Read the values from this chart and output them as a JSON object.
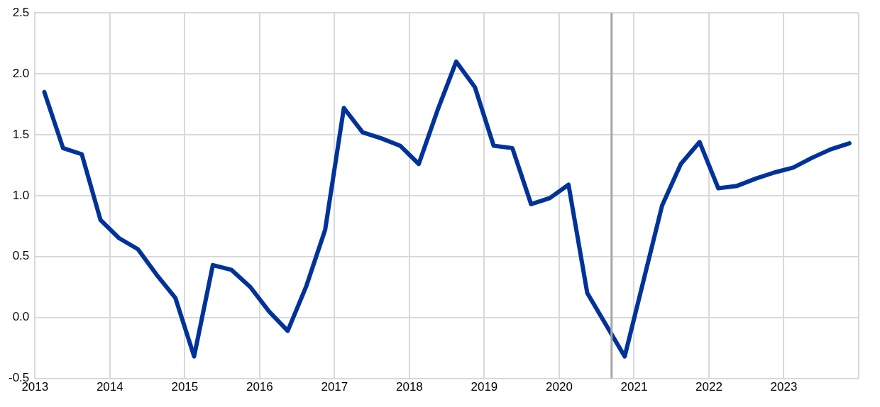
{
  "chart_data": {
    "type": "line",
    "x": [
      2013.125,
      2013.375,
      2013.625,
      2013.875,
      2014.125,
      2014.375,
      2014.625,
      2014.875,
      2015.125,
      2015.375,
      2015.625,
      2015.875,
      2016.125,
      2016.375,
      2016.625,
      2016.875,
      2017.125,
      2017.375,
      2017.625,
      2017.875,
      2018.125,
      2018.375,
      2018.625,
      2018.875,
      2019.125,
      2019.375,
      2019.625,
      2019.875,
      2020.125,
      2020.375,
      2020.625,
      2020.875,
      2021.125,
      2021.375,
      2021.625,
      2021.875,
      2022.125,
      2022.375,
      2022.625,
      2022.875,
      2023.125,
      2023.375,
      2023.625,
      2023.875
    ],
    "series": [
      {
        "color": "#003299",
        "values": [
          1.85,
          1.39,
          1.34,
          0.8,
          0.65,
          0.56,
          0.35,
          0.16,
          -0.32,
          0.43,
          0.39,
          0.25,
          0.05,
          -0.11,
          0.26,
          0.72,
          1.72,
          1.52,
          1.47,
          1.41,
          1.26,
          1.7,
          2.1,
          1.89,
          1.41,
          1.39,
          0.93,
          0.98,
          1.09,
          0.2,
          -0.06,
          -0.32,
          0.3,
          0.92,
          1.26,
          1.44,
          1.06,
          1.08,
          1.14,
          1.19,
          1.23,
          1.31,
          1.38,
          1.43
        ]
      }
    ],
    "xlim": [
      2013,
      2024
    ],
    "xticks": [
      2013,
      2014,
      2015,
      2016,
      2017,
      2018,
      2019,
      2020,
      2021,
      2022,
      2023,
      {
        "value": 2024,
        "label": null
      }
    ],
    "ylim": [
      -0.5,
      2.5
    ],
    "yticks": [
      {
        "value": -0.5,
        "label": "-0.5"
      },
      {
        "value": 0,
        "label": "0.0"
      },
      {
        "value": 0.5,
        "label": "0.5"
      },
      {
        "value": 1,
        "label": "1.0"
      },
      {
        "value": 1.5,
        "label": "1.5"
      },
      {
        "value": 2,
        "label": "2.0"
      },
      {
        "value": 2.5,
        "label": "2.5"
      }
    ],
    "ref_lines": [
      {
        "axis": "x",
        "value": 2020.7,
        "color": "#a6a6a6"
      }
    ],
    "grid": true,
    "legend": false,
    "marker": "none",
    "line_style": "solid"
  }
}
